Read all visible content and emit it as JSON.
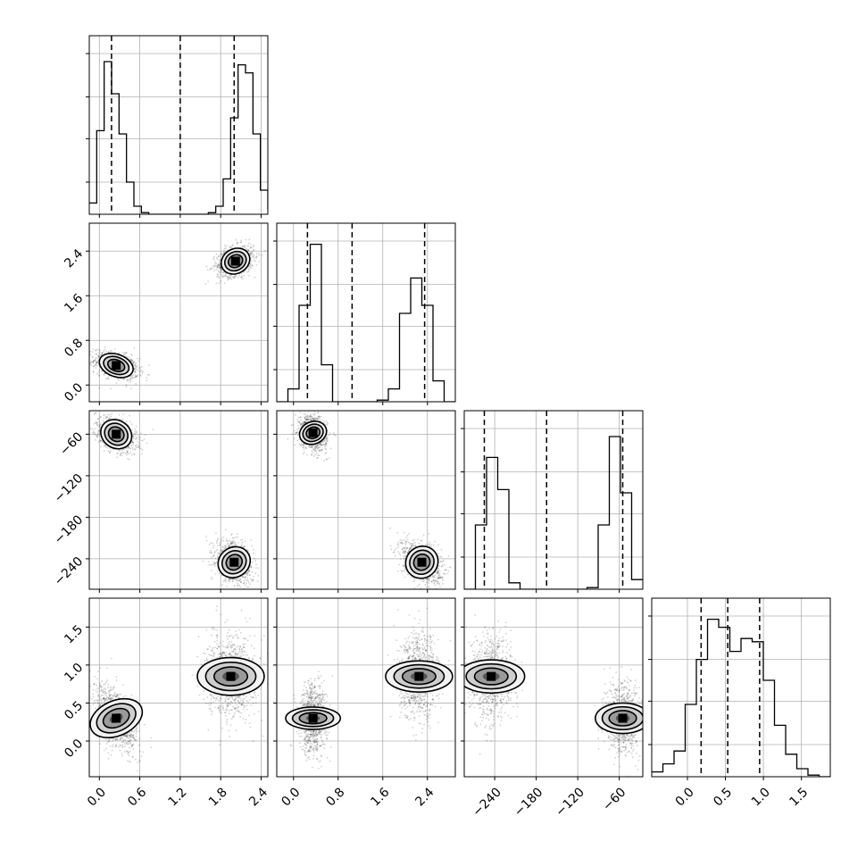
{
  "chart_data": {
    "type": "corner",
    "title": "",
    "grid": true,
    "colors": {
      "ink": "#000000",
      "grid": "#b0b0b0",
      "axes_bg": "#ffffff"
    },
    "parameters": [
      {
        "id": "p0",
        "range": [
          -0.15,
          2.5
        ],
        "ticks": [
          0.0,
          0.6,
          1.2,
          1.8,
          2.4
        ],
        "tick_labels": [
          "0.0",
          "0.6",
          "1.2",
          "1.8",
          "2.4"
        ]
      },
      {
        "id": "p1",
        "range": [
          -0.3,
          2.9
        ],
        "ticks": [
          0.0,
          0.8,
          1.6,
          2.4
        ],
        "tick_labels": [
          "0.0",
          "0.8",
          "1.6",
          "2.4"
        ]
      },
      {
        "id": "p2",
        "range": [
          -284,
          -26
        ],
        "ticks": [
          -240,
          -180,
          -120,
          -60
        ],
        "tick_labels": [
          "−240",
          "−180",
          "−120",
          "−60"
        ]
      },
      {
        "id": "p3",
        "range": [
          -0.47,
          1.88
        ],
        "ticks": [
          0.0,
          0.5,
          1.0,
          1.5
        ],
        "tick_labels": [
          "0.0",
          "0.5",
          "1.0",
          "1.5"
        ]
      }
    ],
    "quantiles": [
      [
        0.18,
        1.2,
        2.0
      ],
      [
        0.25,
        1.05,
        2.35
      ],
      [
        -255,
        -165,
        -55
      ],
      [
        0.18,
        0.53,
        0.95
      ]
    ],
    "histograms": [
      {
        "bins": [
          -0.15,
          -0.0396,
          0.0708,
          0.1812,
          0.2917,
          0.4021,
          0.5125,
          0.6229,
          0.7333,
          0.8437,
          0.9542,
          1.0646,
          1.175,
          1.2854,
          1.3958,
          1.5062,
          1.6167,
          1.7271,
          1.8375,
          1.9479,
          2.0583,
          2.1687,
          2.2792,
          2.3896,
          2.5
        ],
        "counts": [
          0.07,
          0.52,
          0.95,
          0.75,
          0.5,
          0.2,
          0.05,
          0.01,
          0.0,
          0.0,
          0.0,
          0.0,
          0.0,
          0.0,
          0.0,
          0.0,
          0.01,
          0.05,
          0.22,
          0.6,
          0.93,
          0.88,
          0.5,
          0.15,
          0.03
        ]
      },
      {
        "bins": [
          -0.3,
          -0.1,
          0.1,
          0.3,
          0.5,
          0.7,
          0.9,
          1.1,
          1.3,
          1.5,
          1.7,
          1.9,
          2.1,
          2.3,
          2.5,
          2.7,
          2.9
        ],
        "counts": [
          0.0,
          0.08,
          0.6,
          0.98,
          0.23,
          0.0,
          0.0,
          0.0,
          0.0,
          0.01,
          0.08,
          0.55,
          0.77,
          0.6,
          0.13,
          0.0
        ]
      },
      {
        "bins": [
          -284,
          -267.875,
          -251.75,
          -235.625,
          -219.5,
          -203.375,
          -187.25,
          -171.125,
          -155,
          -138.875,
          -122.75,
          -106.625,
          -90.5,
          -74.375,
          -58.25,
          -42.125,
          -26
        ],
        "counts": [
          0.0,
          0.4,
          0.82,
          0.62,
          0.04,
          0.0,
          0.0,
          0.0,
          0.0,
          0.0,
          0.0,
          0.01,
          0.4,
          0.95,
          0.6,
          0.06
        ]
      },
      {
        "bins": [
          -0.47,
          -0.3231,
          -0.1762,
          -0.0294,
          0.1175,
          0.2644,
          0.4113,
          0.5581,
          0.705,
          0.8519,
          0.9988,
          1.1456,
          1.2925,
          1.4394,
          1.5862,
          1.7331,
          1.88
        ],
        "counts": [
          0.03,
          0.08,
          0.16,
          0.45,
          0.73,
          0.98,
          0.93,
          0.78,
          0.86,
          0.84,
          0.6,
          0.32,
          0.14,
          0.05,
          0.01,
          0.0
        ]
      }
    ],
    "blobs": [
      {
        "x": 1,
        "y": 0,
        "clusters": [
          {
            "mx": 0.25,
            "my": 0.35,
            "sx": 0.13,
            "sy": 0.1,
            "rho": -0.4
          },
          {
            "mx": 2.02,
            "my": 2.22,
            "sx": 0.11,
            "sy": 0.11,
            "rho": 0.3
          }
        ]
      },
      {
        "x": 2,
        "y": 0,
        "clusters": [
          {
            "mx": 0.25,
            "my": -60,
            "sx": 0.12,
            "sy": 10,
            "rho": -0.4
          },
          {
            "mx": 2.0,
            "my": -245,
            "sx": 0.11,
            "sy": 12,
            "rho": -0.3
          }
        ]
      },
      {
        "x": 2,
        "y": 1,
        "clusters": [
          {
            "mx": 0.35,
            "my": -58,
            "sx": 0.1,
            "sy": 10,
            "rho": -0.2
          },
          {
            "mx": 2.3,
            "my": -245,
            "sx": 0.14,
            "sy": 12,
            "rho": -0.4
          }
        ]
      },
      {
        "x": 3,
        "y": 0,
        "clusters": [
          {
            "mx": 0.25,
            "my": 0.3,
            "sx": 0.13,
            "sy": 0.18,
            "rho": -0.5
          },
          {
            "mx": 1.95,
            "my": 0.85,
            "sx": 0.14,
            "sy": 0.22,
            "rho": 0.0
          }
        ]
      },
      {
        "x": 3,
        "y": 1,
        "clusters": [
          {
            "mx": 0.35,
            "my": 0.3,
            "sx": 0.1,
            "sy": 0.18,
            "rho": 0.0
          },
          {
            "mx": 2.25,
            "my": 0.85,
            "sx": 0.14,
            "sy": 0.22,
            "rho": 0.0
          }
        ]
      },
      {
        "x": 3,
        "y": 2,
        "clusters": [
          {
            "mx": -245,
            "my": 0.85,
            "sx": 12,
            "sy": 0.22,
            "rho": 0.0
          },
          {
            "mx": -55,
            "my": 0.3,
            "sx": 11,
            "sy": 0.18,
            "rho": 0.0
          }
        ]
      }
    ]
  }
}
